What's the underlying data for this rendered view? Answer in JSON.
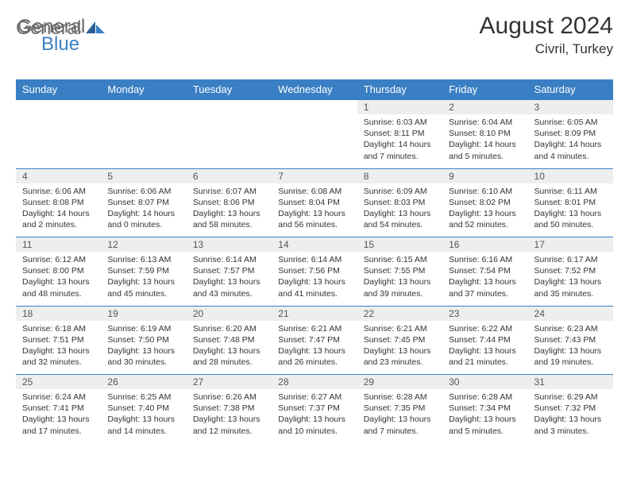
{
  "brand": {
    "part1": "General",
    "part2": "Blue"
  },
  "title": "August 2024",
  "location": "Civril, Turkey",
  "colors": {
    "header_bg": "#3a7fc4",
    "header_text": "#ffffff",
    "daynum_bg": "#eeeeee",
    "border": "#3a7fc4",
    "text": "#333333",
    "logo_gray": "#6b6b6b",
    "logo_blue": "#3a7fc4"
  },
  "dayHeaders": [
    "Sunday",
    "Monday",
    "Tuesday",
    "Wednesday",
    "Thursday",
    "Friday",
    "Saturday"
  ],
  "weeks": [
    [
      null,
      null,
      null,
      null,
      {
        "n": "1",
        "sr": "6:03 AM",
        "ss": "8:11 PM",
        "dl": "14 hours and 7 minutes."
      },
      {
        "n": "2",
        "sr": "6:04 AM",
        "ss": "8:10 PM",
        "dl": "14 hours and 5 minutes."
      },
      {
        "n": "3",
        "sr": "6:05 AM",
        "ss": "8:09 PM",
        "dl": "14 hours and 4 minutes."
      }
    ],
    [
      {
        "n": "4",
        "sr": "6:06 AM",
        "ss": "8:08 PM",
        "dl": "14 hours and 2 minutes."
      },
      {
        "n": "5",
        "sr": "6:06 AM",
        "ss": "8:07 PM",
        "dl": "14 hours and 0 minutes."
      },
      {
        "n": "6",
        "sr": "6:07 AM",
        "ss": "8:06 PM",
        "dl": "13 hours and 58 minutes."
      },
      {
        "n": "7",
        "sr": "6:08 AM",
        "ss": "8:04 PM",
        "dl": "13 hours and 56 minutes."
      },
      {
        "n": "8",
        "sr": "6:09 AM",
        "ss": "8:03 PM",
        "dl": "13 hours and 54 minutes."
      },
      {
        "n": "9",
        "sr": "6:10 AM",
        "ss": "8:02 PM",
        "dl": "13 hours and 52 minutes."
      },
      {
        "n": "10",
        "sr": "6:11 AM",
        "ss": "8:01 PM",
        "dl": "13 hours and 50 minutes."
      }
    ],
    [
      {
        "n": "11",
        "sr": "6:12 AM",
        "ss": "8:00 PM",
        "dl": "13 hours and 48 minutes."
      },
      {
        "n": "12",
        "sr": "6:13 AM",
        "ss": "7:59 PM",
        "dl": "13 hours and 45 minutes."
      },
      {
        "n": "13",
        "sr": "6:14 AM",
        "ss": "7:57 PM",
        "dl": "13 hours and 43 minutes."
      },
      {
        "n": "14",
        "sr": "6:14 AM",
        "ss": "7:56 PM",
        "dl": "13 hours and 41 minutes."
      },
      {
        "n": "15",
        "sr": "6:15 AM",
        "ss": "7:55 PM",
        "dl": "13 hours and 39 minutes."
      },
      {
        "n": "16",
        "sr": "6:16 AM",
        "ss": "7:54 PM",
        "dl": "13 hours and 37 minutes."
      },
      {
        "n": "17",
        "sr": "6:17 AM",
        "ss": "7:52 PM",
        "dl": "13 hours and 35 minutes."
      }
    ],
    [
      {
        "n": "18",
        "sr": "6:18 AM",
        "ss": "7:51 PM",
        "dl": "13 hours and 32 minutes."
      },
      {
        "n": "19",
        "sr": "6:19 AM",
        "ss": "7:50 PM",
        "dl": "13 hours and 30 minutes."
      },
      {
        "n": "20",
        "sr": "6:20 AM",
        "ss": "7:48 PM",
        "dl": "13 hours and 28 minutes."
      },
      {
        "n": "21",
        "sr": "6:21 AM",
        "ss": "7:47 PM",
        "dl": "13 hours and 26 minutes."
      },
      {
        "n": "22",
        "sr": "6:21 AM",
        "ss": "7:45 PM",
        "dl": "13 hours and 23 minutes."
      },
      {
        "n": "23",
        "sr": "6:22 AM",
        "ss": "7:44 PM",
        "dl": "13 hours and 21 minutes."
      },
      {
        "n": "24",
        "sr": "6:23 AM",
        "ss": "7:43 PM",
        "dl": "13 hours and 19 minutes."
      }
    ],
    [
      {
        "n": "25",
        "sr": "6:24 AM",
        "ss": "7:41 PM",
        "dl": "13 hours and 17 minutes."
      },
      {
        "n": "26",
        "sr": "6:25 AM",
        "ss": "7:40 PM",
        "dl": "13 hours and 14 minutes."
      },
      {
        "n": "27",
        "sr": "6:26 AM",
        "ss": "7:38 PM",
        "dl": "13 hours and 12 minutes."
      },
      {
        "n": "28",
        "sr": "6:27 AM",
        "ss": "7:37 PM",
        "dl": "13 hours and 10 minutes."
      },
      {
        "n": "29",
        "sr": "6:28 AM",
        "ss": "7:35 PM",
        "dl": "13 hours and 7 minutes."
      },
      {
        "n": "30",
        "sr": "6:28 AM",
        "ss": "7:34 PM",
        "dl": "13 hours and 5 minutes."
      },
      {
        "n": "31",
        "sr": "6:29 AM",
        "ss": "7:32 PM",
        "dl": "13 hours and 3 minutes."
      }
    ]
  ],
  "labels": {
    "sunrise": "Sunrise: ",
    "sunset": "Sunset: ",
    "daylight": "Daylight: "
  }
}
